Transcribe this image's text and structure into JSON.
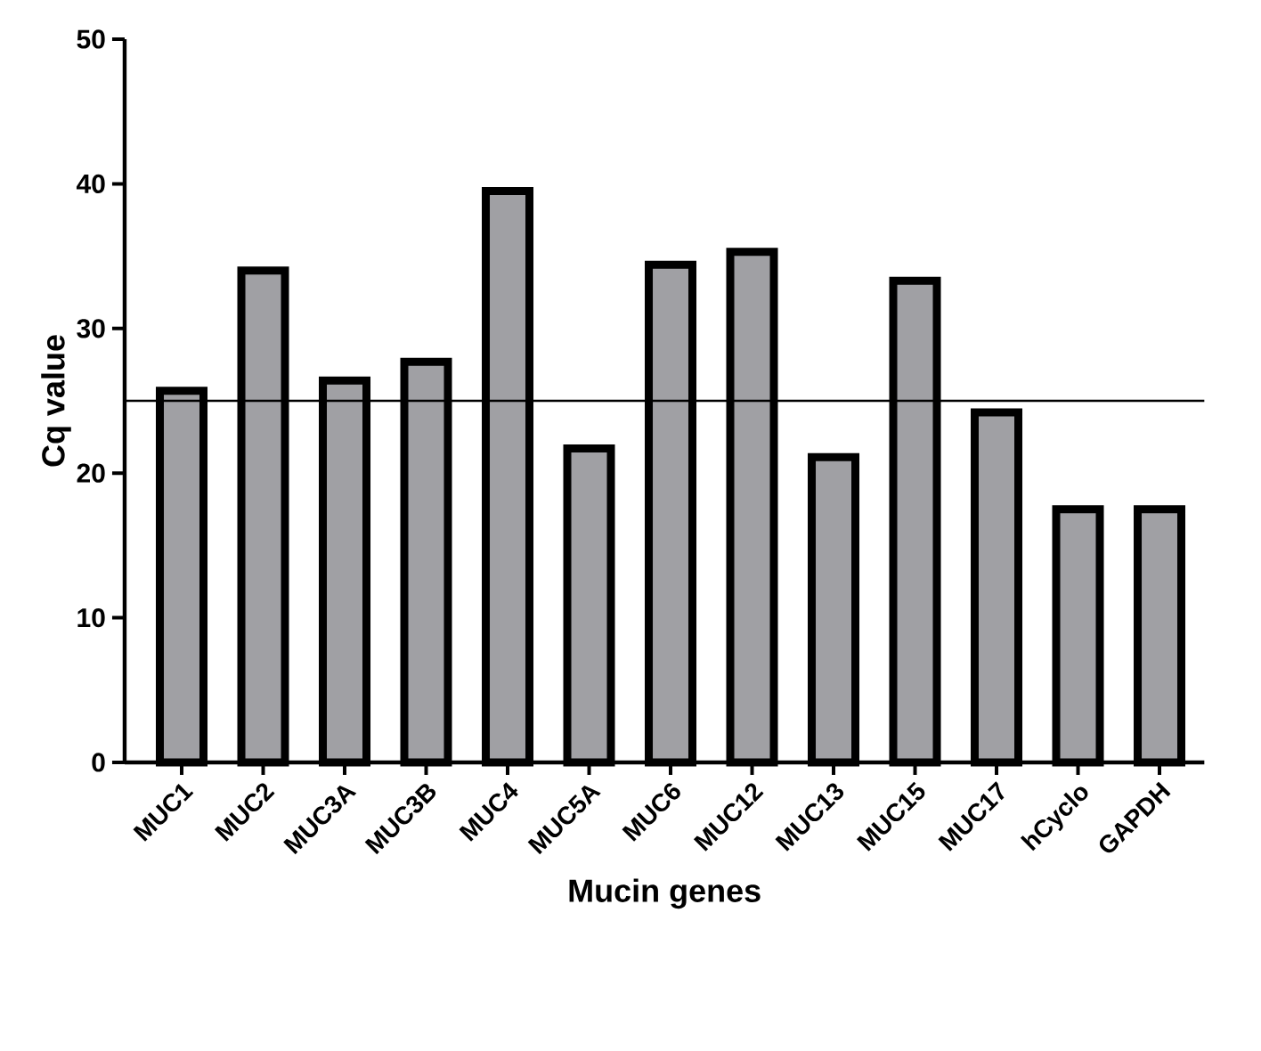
{
  "chart_data": {
    "type": "bar",
    "xlabel": "Mucin genes",
    "ylabel": "Cq value",
    "categories": [
      "MUC1",
      "MUC2",
      "MUC3A",
      "MUC3B",
      "MUC4",
      "MUC5A",
      "MUC6",
      "MUC12",
      "MUC13",
      "MUC15",
      "MUC17",
      "hCyclo",
      "GAPDH"
    ],
    "values": [
      25.7,
      34.0,
      26.4,
      27.7,
      39.5,
      21.7,
      34.4,
      35.3,
      21.1,
      33.3,
      24.2,
      17.5,
      17.5
    ],
    "color": "#a0a0a4",
    "ylim": [
      0,
      50
    ],
    "yticks": [
      0,
      10,
      20,
      30,
      40,
      50
    ],
    "ref_lines": [
      {
        "axis": "y",
        "value": 25,
        "color": "#000000"
      }
    ]
  }
}
